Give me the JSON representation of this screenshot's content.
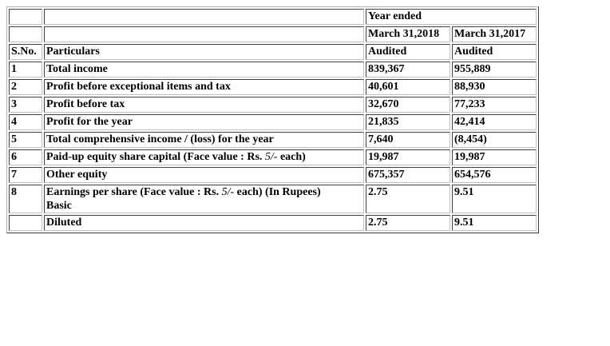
{
  "header": {
    "year_ended": "Year ended",
    "col1_date": "March 31,2018",
    "col2_date": "March 31,2017",
    "sno_label": "S.No.",
    "particulars_label": "Particulars",
    "col1_status": "Audited",
    "col2_status": "Audited"
  },
  "rows": [
    {
      "sno": "1",
      "particulars": "Total income",
      "y2018": "839,367",
      "y2017": "955,889"
    },
    {
      "sno": "2",
      "particulars": "Profit before exceptional items and tax",
      "y2018": "40,601",
      "y2017": "88,930"
    },
    {
      "sno": "3",
      "particulars": "Profit before tax",
      "y2018": "32,670",
      "y2017": "77,233"
    },
    {
      "sno": "4",
      "particulars": "Profit for the year",
      "y2018": "21,835",
      "y2017": "42,414"
    },
    {
      "sno": "5",
      "particulars": "Total comprehensive income / (loss) for the year",
      "y2018": "7,640",
      "y2017": "(8,454)"
    },
    {
      "sno": "6",
      "particulars_prefix": "Paid-up equity share capital (Face value : Rs. ",
      "particulars_face": "5/-",
      "particulars_suffix": " each)",
      "y2018": "19,987",
      "y2017": "19,987"
    },
    {
      "sno": "7",
      "particulars": "Other equity",
      "y2018": "675,357",
      "y2017": "654,576"
    }
  ],
  "eps": {
    "sno": "8",
    "title_prefix": "Earnings per share (Face value : Rs. ",
    "title_face": "5/-",
    "title_suffix": " each) (In Rupees)",
    "basic_label": "Basic",
    "basic_2018": "2.75",
    "basic_2017": "9.51",
    "diluted_label": "Diluted",
    "diluted_2018": "2.75",
    "diluted_2017": "9.51"
  }
}
